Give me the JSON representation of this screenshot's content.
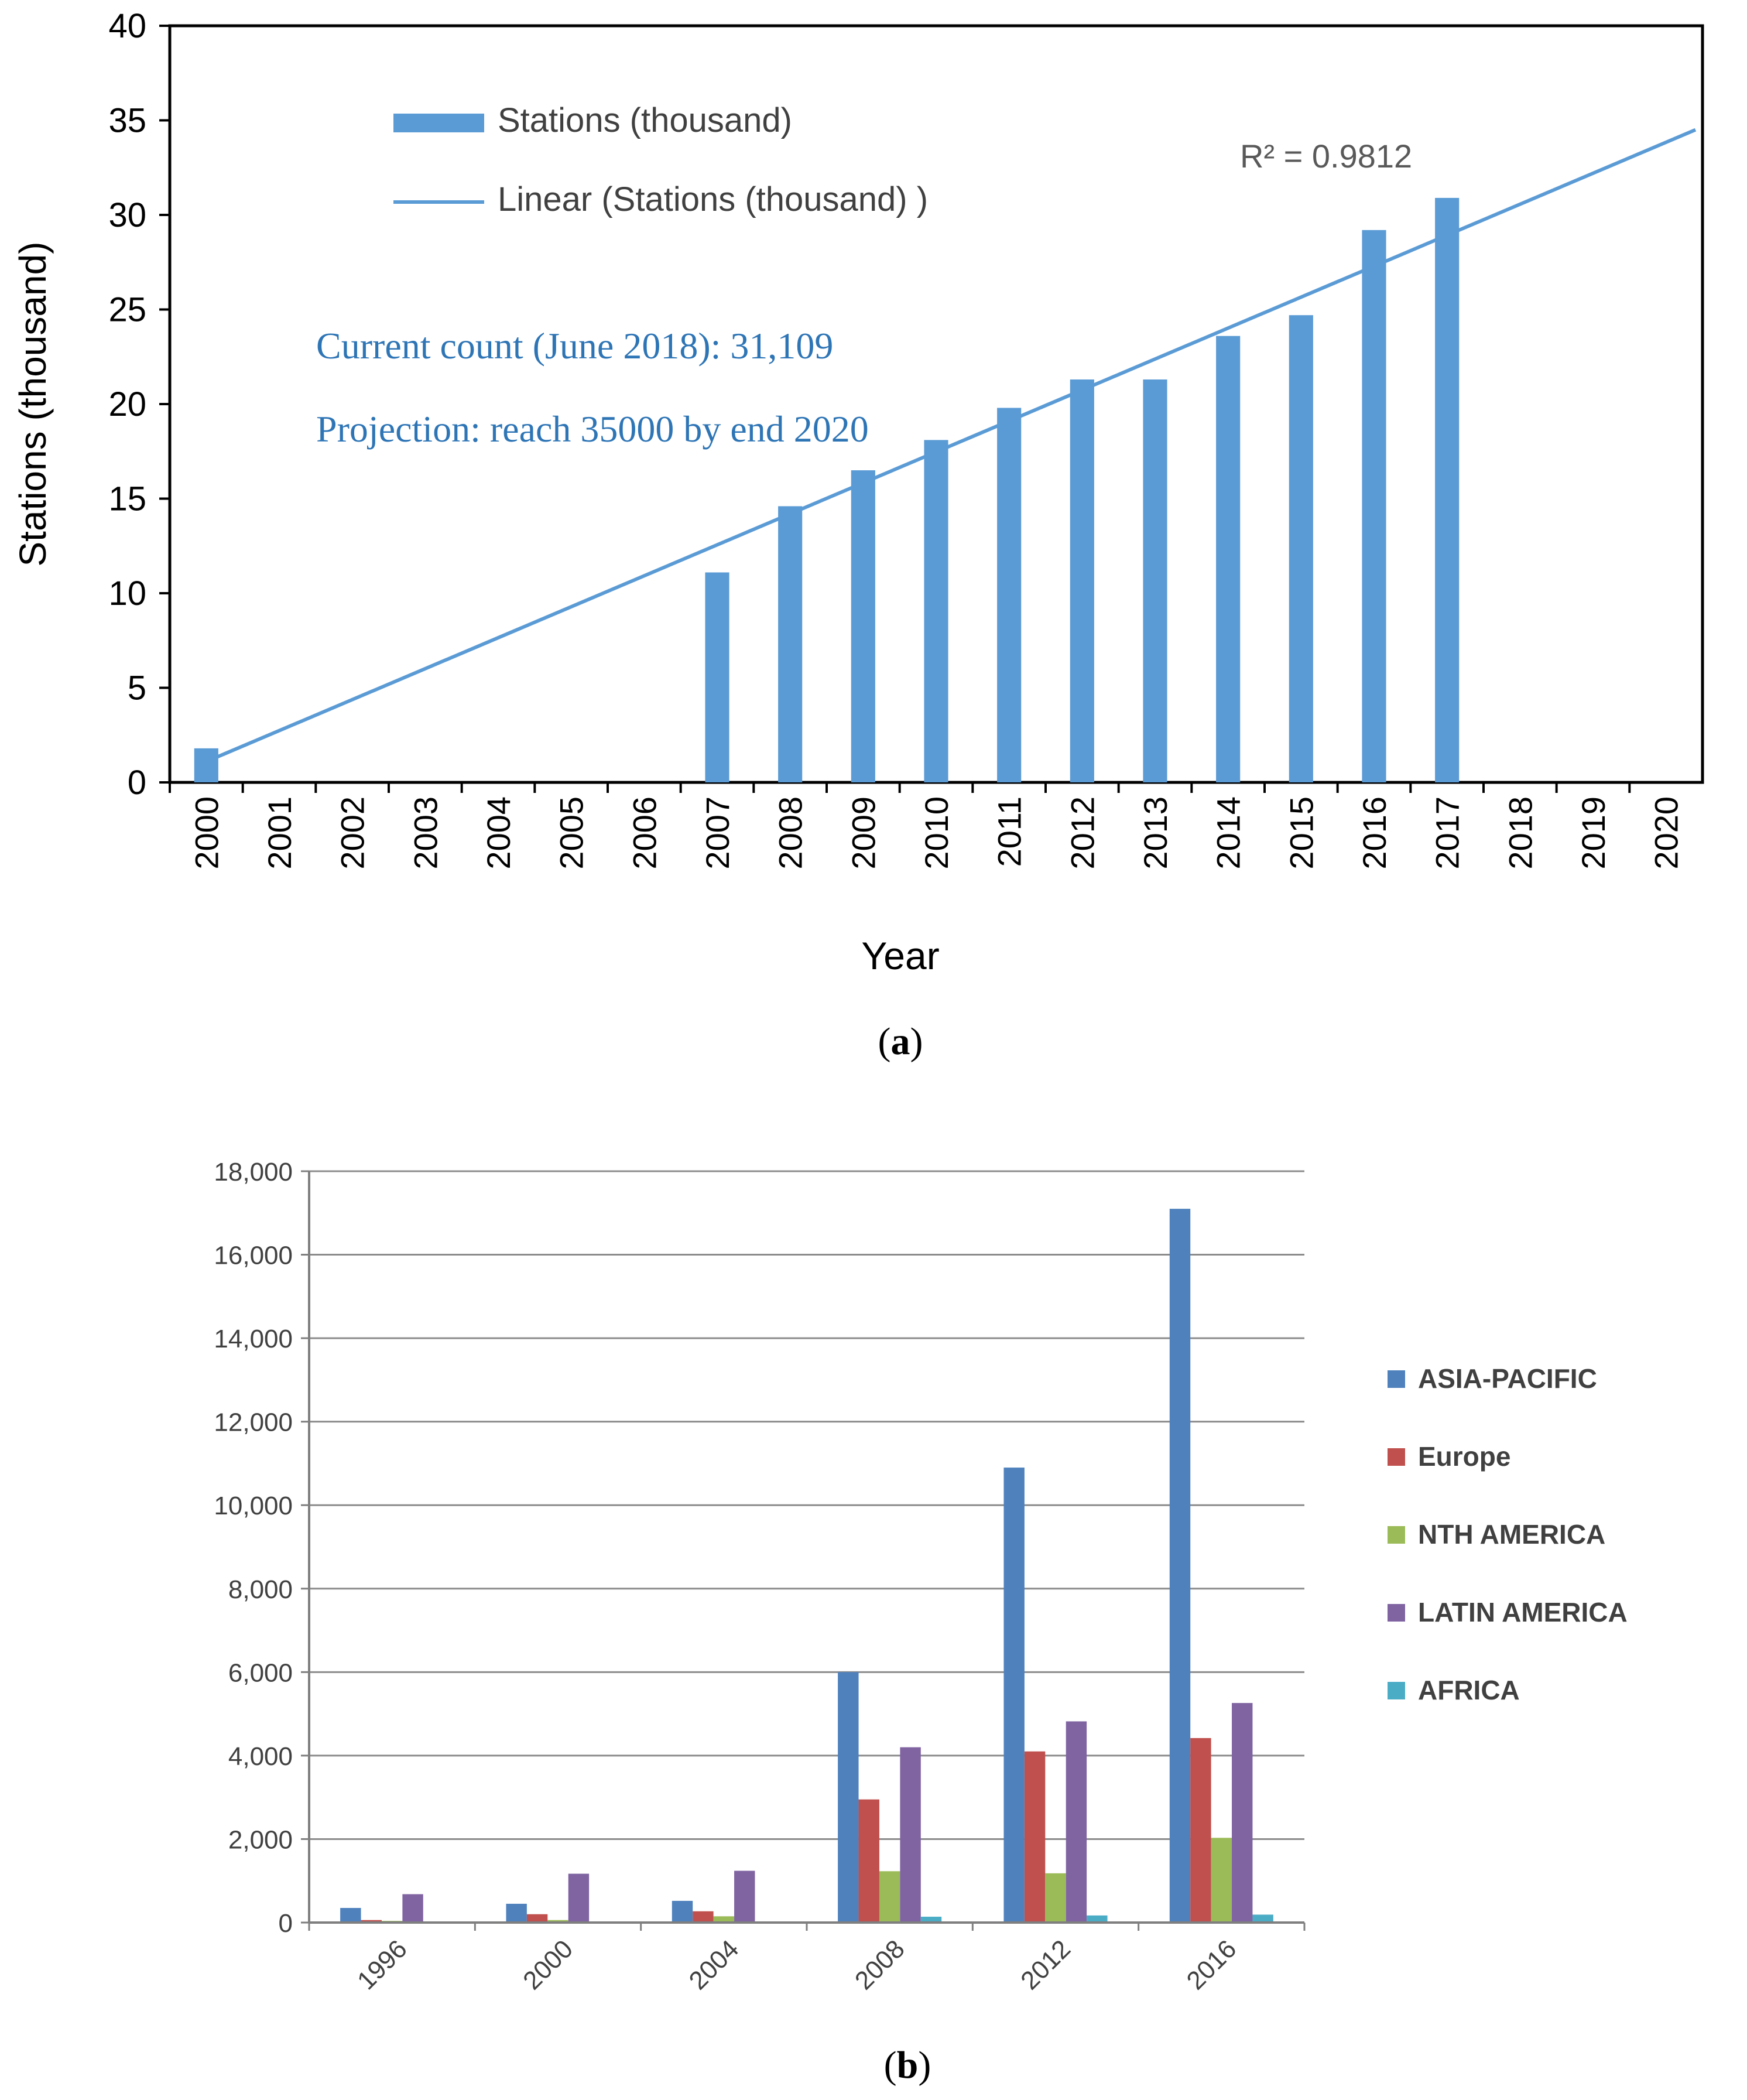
{
  "chart_data": [
    {
      "type": "bar",
      "panel_label": "(a)",
      "panel_letter": "a",
      "xlabel": "Year",
      "ylabel": "Stations (thousand)",
      "ylim": [
        0,
        40
      ],
      "yticks": [
        0,
        5,
        10,
        15,
        20,
        25,
        30,
        35,
        40
      ],
      "categories": [
        "2000",
        "2001",
        "2002",
        "2003",
        "2004",
        "2005",
        "2006",
        "2007",
        "2008",
        "2009",
        "2010",
        "2011",
        "2012",
        "2013",
        "2014",
        "2015",
        "2016",
        "2017",
        "2018",
        "2019",
        "2020"
      ],
      "series": [
        {
          "name": "Stations (thousand)",
          "values": [
            1.8,
            null,
            null,
            null,
            null,
            null,
            null,
            11.1,
            14.6,
            16.5,
            18.1,
            19.8,
            21.3,
            21.3,
            23.6,
            24.7,
            29.2,
            30.9,
            null,
            null,
            null
          ]
        }
      ],
      "trendline": {
        "name": "Linear (Stations (thousand) )",
        "start": {
          "x": "2000",
          "y": 1.1
        },
        "end": {
          "x": "2020",
          "y": 34.5
        },
        "r_squared_label": "R² = 0.9812"
      },
      "annotations": [
        "Current count (June 2018): 31,109",
        "Projection: reach 35000 by end 2020"
      ],
      "colors": {
        "bar": "#5b9bd5",
        "line": "#5b9bd5",
        "annotation": "#2e75b6",
        "axis": "#000000"
      }
    },
    {
      "type": "bar",
      "panel_label": "(b)",
      "panel_letter": "b",
      "ylim": [
        0,
        18000
      ],
      "yticks": [
        0,
        2000,
        4000,
        6000,
        8000,
        10000,
        12000,
        14000,
        16000,
        18000
      ],
      "ytick_labels": [
        "0",
        "2,000",
        "4,000",
        "6,000",
        "8,000",
        "10,000",
        "12,000",
        "14,000",
        "16,000",
        "18,000"
      ],
      "categories": [
        "1996",
        "2000",
        "2004",
        "2008",
        "2012",
        "2016"
      ],
      "series": [
        {
          "name": "ASIA-PACIFIC",
          "color": "#4f81bd",
          "values": [
            350,
            450,
            520,
            6000,
            10900,
            17100
          ]
        },
        {
          "name": "Europe",
          "color": "#c0504d",
          "values": [
            60,
            200,
            270,
            2950,
            4100,
            4420
          ]
        },
        {
          "name": "NTH AMERICA",
          "color": "#9bbb59",
          "values": [
            40,
            60,
            150,
            1230,
            1180,
            2030
          ]
        },
        {
          "name": "LATIN AMERICA",
          "color": "#8064a2",
          "values": [
            680,
            1170,
            1240,
            4200,
            4820,
            5260
          ]
        },
        {
          "name": "AFRICA",
          "color": "#4bacc6",
          "values": [
            0,
            0,
            0,
            140,
            170,
            190
          ]
        }
      ],
      "legend_position": "right",
      "colors": {
        "grid": "#8c8c8c",
        "axis": "#7f7f7f",
        "text": "#404040"
      }
    }
  ]
}
